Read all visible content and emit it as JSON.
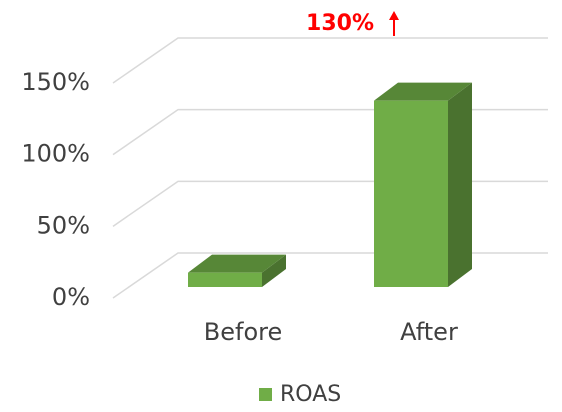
{
  "chart_data": {
    "type": "bar3d",
    "categories": [
      "Before",
      "After"
    ],
    "series": [
      {
        "name": "ROAS",
        "color": "#70ad47",
        "values": [
          10,
          130
        ]
      }
    ],
    "ylim": [
      0,
      150
    ],
    "yticks": [
      {
        "value": 0,
        "label": "0%"
      },
      {
        "value": 50,
        "label": "50%"
      },
      {
        "value": 100,
        "label": "100%"
      },
      {
        "value": 150,
        "label": "150%"
      }
    ],
    "grid": true,
    "annotation": "130%",
    "annotation_color": "#ff0000",
    "legend": "bottom"
  }
}
